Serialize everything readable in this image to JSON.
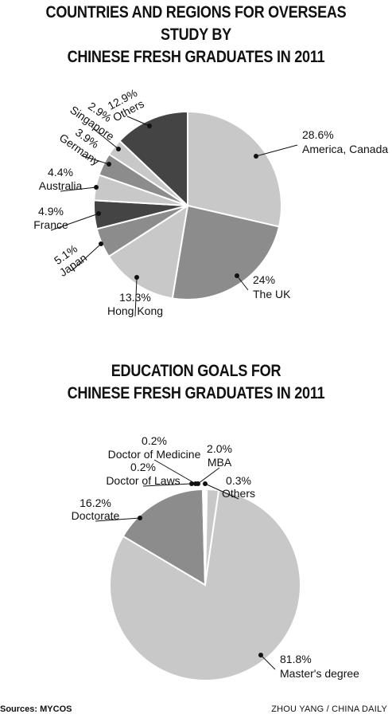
{
  "chart_data": [
    {
      "type": "pie",
      "title": "COUNTRIES AND REGIONS FOR OVERSEAS STUDY BY CHINESE FRESH GRADUATES IN 2011",
      "slices": [
        {
          "label": "America, Canada",
          "value": 28.6,
          "value_label": "28.6%",
          "color": "#c8c8c8"
        },
        {
          "label": "The UK",
          "value": 24,
          "value_label": "24%",
          "color": "#8c8c8c"
        },
        {
          "label": "Hong Kong",
          "value": 13.3,
          "value_label": "13.3%",
          "color": "#c8c8c8"
        },
        {
          "label": "Japan",
          "value": 5.1,
          "value_label": "5.1%",
          "color": "#8c8c8c"
        },
        {
          "label": "France",
          "value": 4.9,
          "value_label": "4.9%",
          "color": "#444444"
        },
        {
          "label": "Australia",
          "value": 4.4,
          "value_label": "4.4%",
          "color": "#c8c8c8"
        },
        {
          "label": "Germany",
          "value": 3.9,
          "value_label": "3.9%",
          "color": "#8c8c8c"
        },
        {
          "label": "Singapore",
          "value": 2.9,
          "value_label": "2.9%",
          "color": "#c8c8c8"
        },
        {
          "label": "Others",
          "value": 12.9,
          "value_label": "12.9%",
          "color": "#444444"
        }
      ]
    },
    {
      "type": "pie",
      "title": "EDUCATION GOALS FOR CHINESE FRESH GRADUATES IN 2011",
      "slices": [
        {
          "label": "Master's degree",
          "value": 81.8,
          "value_label": "81.8%",
          "color": "#c8c8c8"
        },
        {
          "label": "Doctorate",
          "value": 16.2,
          "value_label": "16.2%",
          "color": "#8c8c8c"
        },
        {
          "label": "Doctor of Laws",
          "value": 0.2,
          "value_label": "0.2%",
          "color": "#8c8c8c"
        },
        {
          "label": "Doctor of Medicine",
          "value": 0.2,
          "value_label": "0.2%",
          "color": "#444444"
        },
        {
          "label": "MBA",
          "value": 2.0,
          "value_label": "2.0%",
          "color": "#c8c8c8"
        },
        {
          "label": "Others",
          "value": 0.3,
          "value_label": "0.3%",
          "color": "#8c8c8c"
        }
      ]
    }
  ],
  "titles": {
    "chart1_line1": "COUNTRIES AND REGIONS FOR OVERSEAS STUDY BY",
    "chart1_line2": "CHINESE FRESH GRADUATES IN 2011",
    "chart2_line1": "EDUCATION GOALS FOR",
    "chart2_line2": "CHINESE FRESH GRADUATES IN 2011"
  },
  "footer": {
    "source": "Sources: MYCOS",
    "credit": "ZHOU YANG / CHINA DAILY"
  }
}
